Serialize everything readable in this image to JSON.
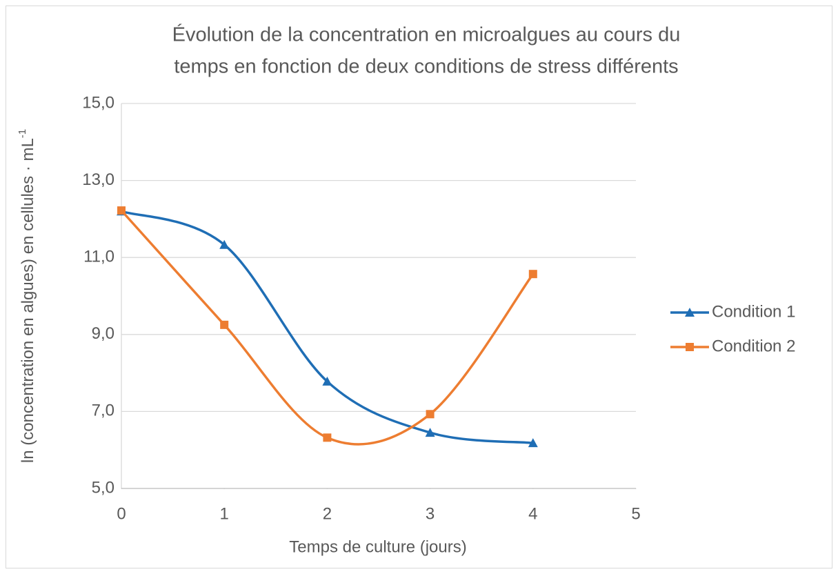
{
  "chart_data": {
    "type": "line",
    "smooth": true,
    "title": [
      "Évolution de la concentration en microalgues au cours du",
      "temps en fonction de deux conditions de stress différents"
    ],
    "x_label": "Temps de culture (jours)",
    "y_label": "ln (concentration en algues) en cellules · mL",
    "y_label_superscript": "-1",
    "x": [
      0,
      1,
      2,
      3,
      4
    ],
    "series": [
      {
        "name": "Condition 1",
        "color": "#1f6eb5",
        "marker": "triangle",
        "values": [
          12.2,
          11.33,
          7.78,
          6.45,
          6.18
        ]
      },
      {
        "name": "Condition 2",
        "color": "#ed7d31",
        "marker": "square",
        "values": [
          12.22,
          9.25,
          6.32,
          6.93,
          10.57
        ]
      }
    ],
    "xlim": [
      0,
      5
    ],
    "xticks": [
      0,
      1,
      2,
      3,
      4,
      5
    ],
    "ylim": [
      5,
      15
    ],
    "yticks": [
      {
        "value": 5,
        "label": "5,0"
      },
      {
        "value": 7,
        "label": "7,0"
      },
      {
        "value": 9,
        "label": "9,0"
      },
      {
        "value": 11,
        "label": "11,0"
      },
      {
        "value": 13,
        "label": "13,0"
      },
      {
        "value": 15,
        "label": "15,0"
      }
    ],
    "grid": true,
    "legend": "right"
  }
}
